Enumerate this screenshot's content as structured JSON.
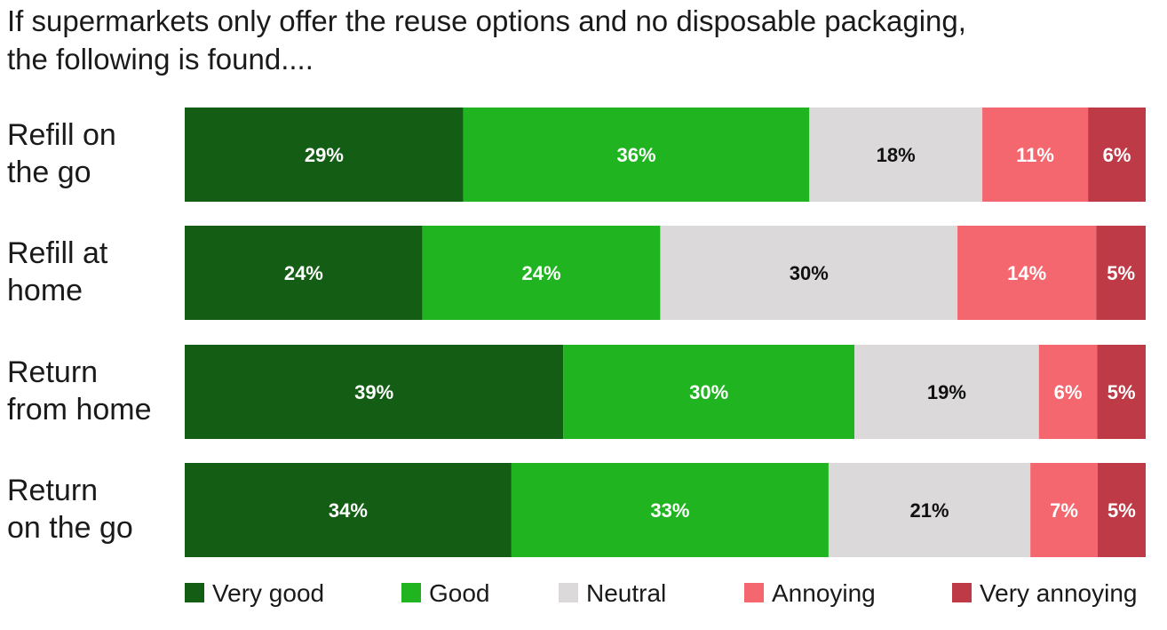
{
  "chart_data": {
    "type": "bar",
    "orientation": "horizontal",
    "stacked": true,
    "title": "If supermarkets only offer the reuse options and no disposable packaging, the following is found....",
    "categories": [
      [
        "Refill on",
        "the go"
      ],
      [
        "Refill at",
        "home"
      ],
      [
        "Return",
        "from home"
      ],
      [
        "Return",
        "on the go"
      ]
    ],
    "series": [
      {
        "name": "Very good",
        "color": "#135e14",
        "label_color": "#ffffff",
        "values": [
          29,
          24,
          39,
          34
        ]
      },
      {
        "name": "Good",
        "color": "#1fb420",
        "label_color": "#ffffff",
        "values": [
          36,
          24,
          30,
          33
        ]
      },
      {
        "name": "Neutral",
        "color": "#dbd9da",
        "label_color": "#111111",
        "values": [
          18,
          30,
          19,
          21
        ]
      },
      {
        "name": "Annoying",
        "color": "#f4676e",
        "label_color": "#ffffff",
        "values": [
          11,
          14,
          6,
          7
        ]
      },
      {
        "name": "Very annoying",
        "color": "#bf3a47",
        "label_color": "#ffffff",
        "values": [
          6,
          5,
          5,
          5
        ]
      }
    ],
    "value_suffix": "%",
    "legend_position": "bottom",
    "grid": false
  }
}
